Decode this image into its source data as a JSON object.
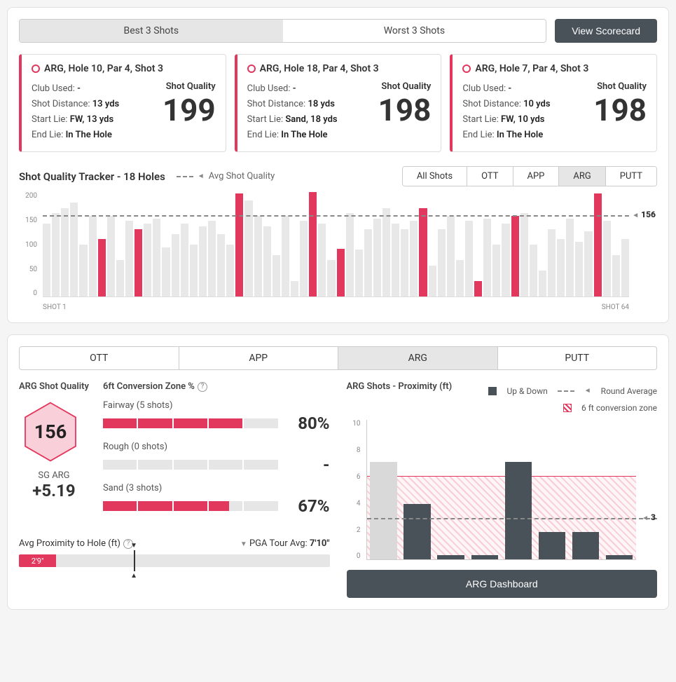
{
  "colors": {
    "accent": "#e3385e",
    "dark": "#4a5259",
    "light_bar": "#e8e8e8",
    "grid": "#dddddd"
  },
  "topTabs": {
    "best": "Best 3 Shots",
    "worst": "Worst 3 Shots",
    "active": "best"
  },
  "scorecardBtn": "View Scorecard",
  "cards": [
    {
      "title": "ARG, Hole 10, Par 4, Shot 3",
      "club": "-",
      "dist": "13 yds",
      "start": "FW, 13 yds",
      "end": "In The Hole",
      "sq": "199"
    },
    {
      "title": "ARG, Hole 18, Par 4, Shot 3",
      "club": "-",
      "dist": "18 yds",
      "start": "Sand, 18 yds",
      "end": "In The Hole",
      "sq": "198"
    },
    {
      "title": "ARG, Hole 7, Par 4, Shot 3",
      "club": "-",
      "dist": "10 yds",
      "start": "FW, 10 yds",
      "end": "In The Hole",
      "sq": "198"
    }
  ],
  "fieldLabels": {
    "club": "Club Used: ",
    "dist": "Shot Distance: ",
    "start": "Start Lie: ",
    "end": "End Lie: ",
    "sq": "Shot Quality"
  },
  "tracker": {
    "title": "Shot Quality Tracker - 18 Holes",
    "avgLegend": "Avg Shot Quality",
    "filters": [
      "All Shots",
      "OTT",
      "APP",
      "ARG",
      "PUTT"
    ],
    "activeFilter": "ARG",
    "yMax": 200,
    "yTicks": [
      "200",
      "150",
      "100",
      "50",
      "0"
    ],
    "avgValue": "156",
    "avgPos": 156,
    "xStart": "SHOT 1",
    "xEnd": "SHOT 64",
    "bars": [
      {
        "v": 140,
        "h": 0
      },
      {
        "v": 160,
        "h": 0
      },
      {
        "v": 170,
        "h": 0
      },
      {
        "v": 180,
        "h": 0
      },
      {
        "v": 100,
        "h": 0
      },
      {
        "v": 155,
        "h": 0
      },
      {
        "v": 110,
        "h": 1
      },
      {
        "v": 155,
        "h": 0
      },
      {
        "v": 70,
        "h": 0
      },
      {
        "v": 145,
        "h": 0
      },
      {
        "v": 130,
        "h": 1
      },
      {
        "v": 140,
        "h": 0
      },
      {
        "v": 150,
        "h": 0
      },
      {
        "v": 95,
        "h": 0
      },
      {
        "v": 120,
        "h": 0
      },
      {
        "v": 140,
        "h": 0
      },
      {
        "v": 100,
        "h": 0
      },
      {
        "v": 135,
        "h": 0
      },
      {
        "v": 145,
        "h": 0
      },
      {
        "v": 120,
        "h": 0
      },
      {
        "v": 100,
        "h": 0
      },
      {
        "v": 198,
        "h": 1
      },
      {
        "v": 185,
        "h": 0
      },
      {
        "v": 155,
        "h": 0
      },
      {
        "v": 135,
        "h": 0
      },
      {
        "v": 80,
        "h": 0
      },
      {
        "v": 155,
        "h": 0
      },
      {
        "v": 30,
        "h": 0
      },
      {
        "v": 145,
        "h": 0
      },
      {
        "v": 200,
        "h": 1
      },
      {
        "v": 140,
        "h": 0
      },
      {
        "v": 70,
        "h": 0
      },
      {
        "v": 92,
        "h": 1
      },
      {
        "v": 160,
        "h": 0
      },
      {
        "v": 90,
        "h": 0
      },
      {
        "v": 130,
        "h": 0
      },
      {
        "v": 150,
        "h": 0
      },
      {
        "v": 170,
        "h": 0
      },
      {
        "v": 140,
        "h": 0
      },
      {
        "v": 130,
        "h": 0
      },
      {
        "v": 145,
        "h": 0
      },
      {
        "v": 170,
        "h": 1
      },
      {
        "v": 60,
        "h": 0
      },
      {
        "v": 130,
        "h": 0
      },
      {
        "v": 155,
        "h": 0
      },
      {
        "v": 70,
        "h": 0
      },
      {
        "v": 145,
        "h": 0
      },
      {
        "v": 30,
        "h": 1
      },
      {
        "v": 150,
        "h": 0
      },
      {
        "v": 100,
        "h": 0
      },
      {
        "v": 140,
        "h": 0
      },
      {
        "v": 155,
        "h": 1
      },
      {
        "v": 160,
        "h": 0
      },
      {
        "v": 100,
        "h": 0
      },
      {
        "v": 50,
        "h": 0
      },
      {
        "v": 130,
        "h": 0
      },
      {
        "v": 110,
        "h": 0
      },
      {
        "v": 150,
        "h": 0
      },
      {
        "v": 105,
        "h": 0
      },
      {
        "v": 125,
        "h": 0
      },
      {
        "v": 198,
        "h": 1
      },
      {
        "v": 145,
        "h": 0
      },
      {
        "v": 80,
        "h": 0
      },
      {
        "v": 110,
        "h": 0
      }
    ]
  },
  "bottomTabs": {
    "items": [
      "OTT",
      "APP",
      "ARG",
      "PUTT"
    ],
    "active": "ARG"
  },
  "arg": {
    "qualityLabel": "ARG Shot Quality",
    "hexValue": "156",
    "sgLabel": "SG ARG",
    "sgValue": "+5.19",
    "convTitle": "6ft Conversion Zone %",
    "convRows": [
      {
        "label": "Fairway (5 shots)",
        "on": 4,
        "total": 5,
        "pct": "80%"
      },
      {
        "label": "Rough (0 shots)",
        "on": 0,
        "total": 5,
        "pct": "-"
      },
      {
        "label": "Sand (3 shots)",
        "on": 3.3,
        "total": 5,
        "pct": "67%"
      }
    ],
    "proxLabel": "Avg Proximity to Hole (ft)",
    "pgaLabel": "PGA Tour Avg:",
    "pgaValue": "7'10\"",
    "proxValue": "2'9\"",
    "proxFillPct": 12,
    "proxMarkPct": 37
  },
  "prox": {
    "title": "ARG Shots - Proximity (ft)",
    "legendUpDown": "Up & Down",
    "legendAvg": "Round Average",
    "legendZone": "6 ft conversion zone",
    "yMax": 10,
    "yTicks": [
      "10",
      "8",
      "6",
      "4",
      "2",
      "0"
    ],
    "zoneTop": 6,
    "avgVal": "3",
    "avgPos": 3,
    "bars": [
      {
        "v": 7,
        "g": 1
      },
      {
        "v": 4,
        "g": 0
      },
      {
        "v": 0.3,
        "g": 0
      },
      {
        "v": 0.3,
        "g": 0
      },
      {
        "v": 7,
        "g": 0
      },
      {
        "v": 2,
        "g": 0
      },
      {
        "v": 2,
        "g": 0
      },
      {
        "v": 0.3,
        "g": 0
      }
    ],
    "dashBtn": "ARG Dashboard"
  }
}
